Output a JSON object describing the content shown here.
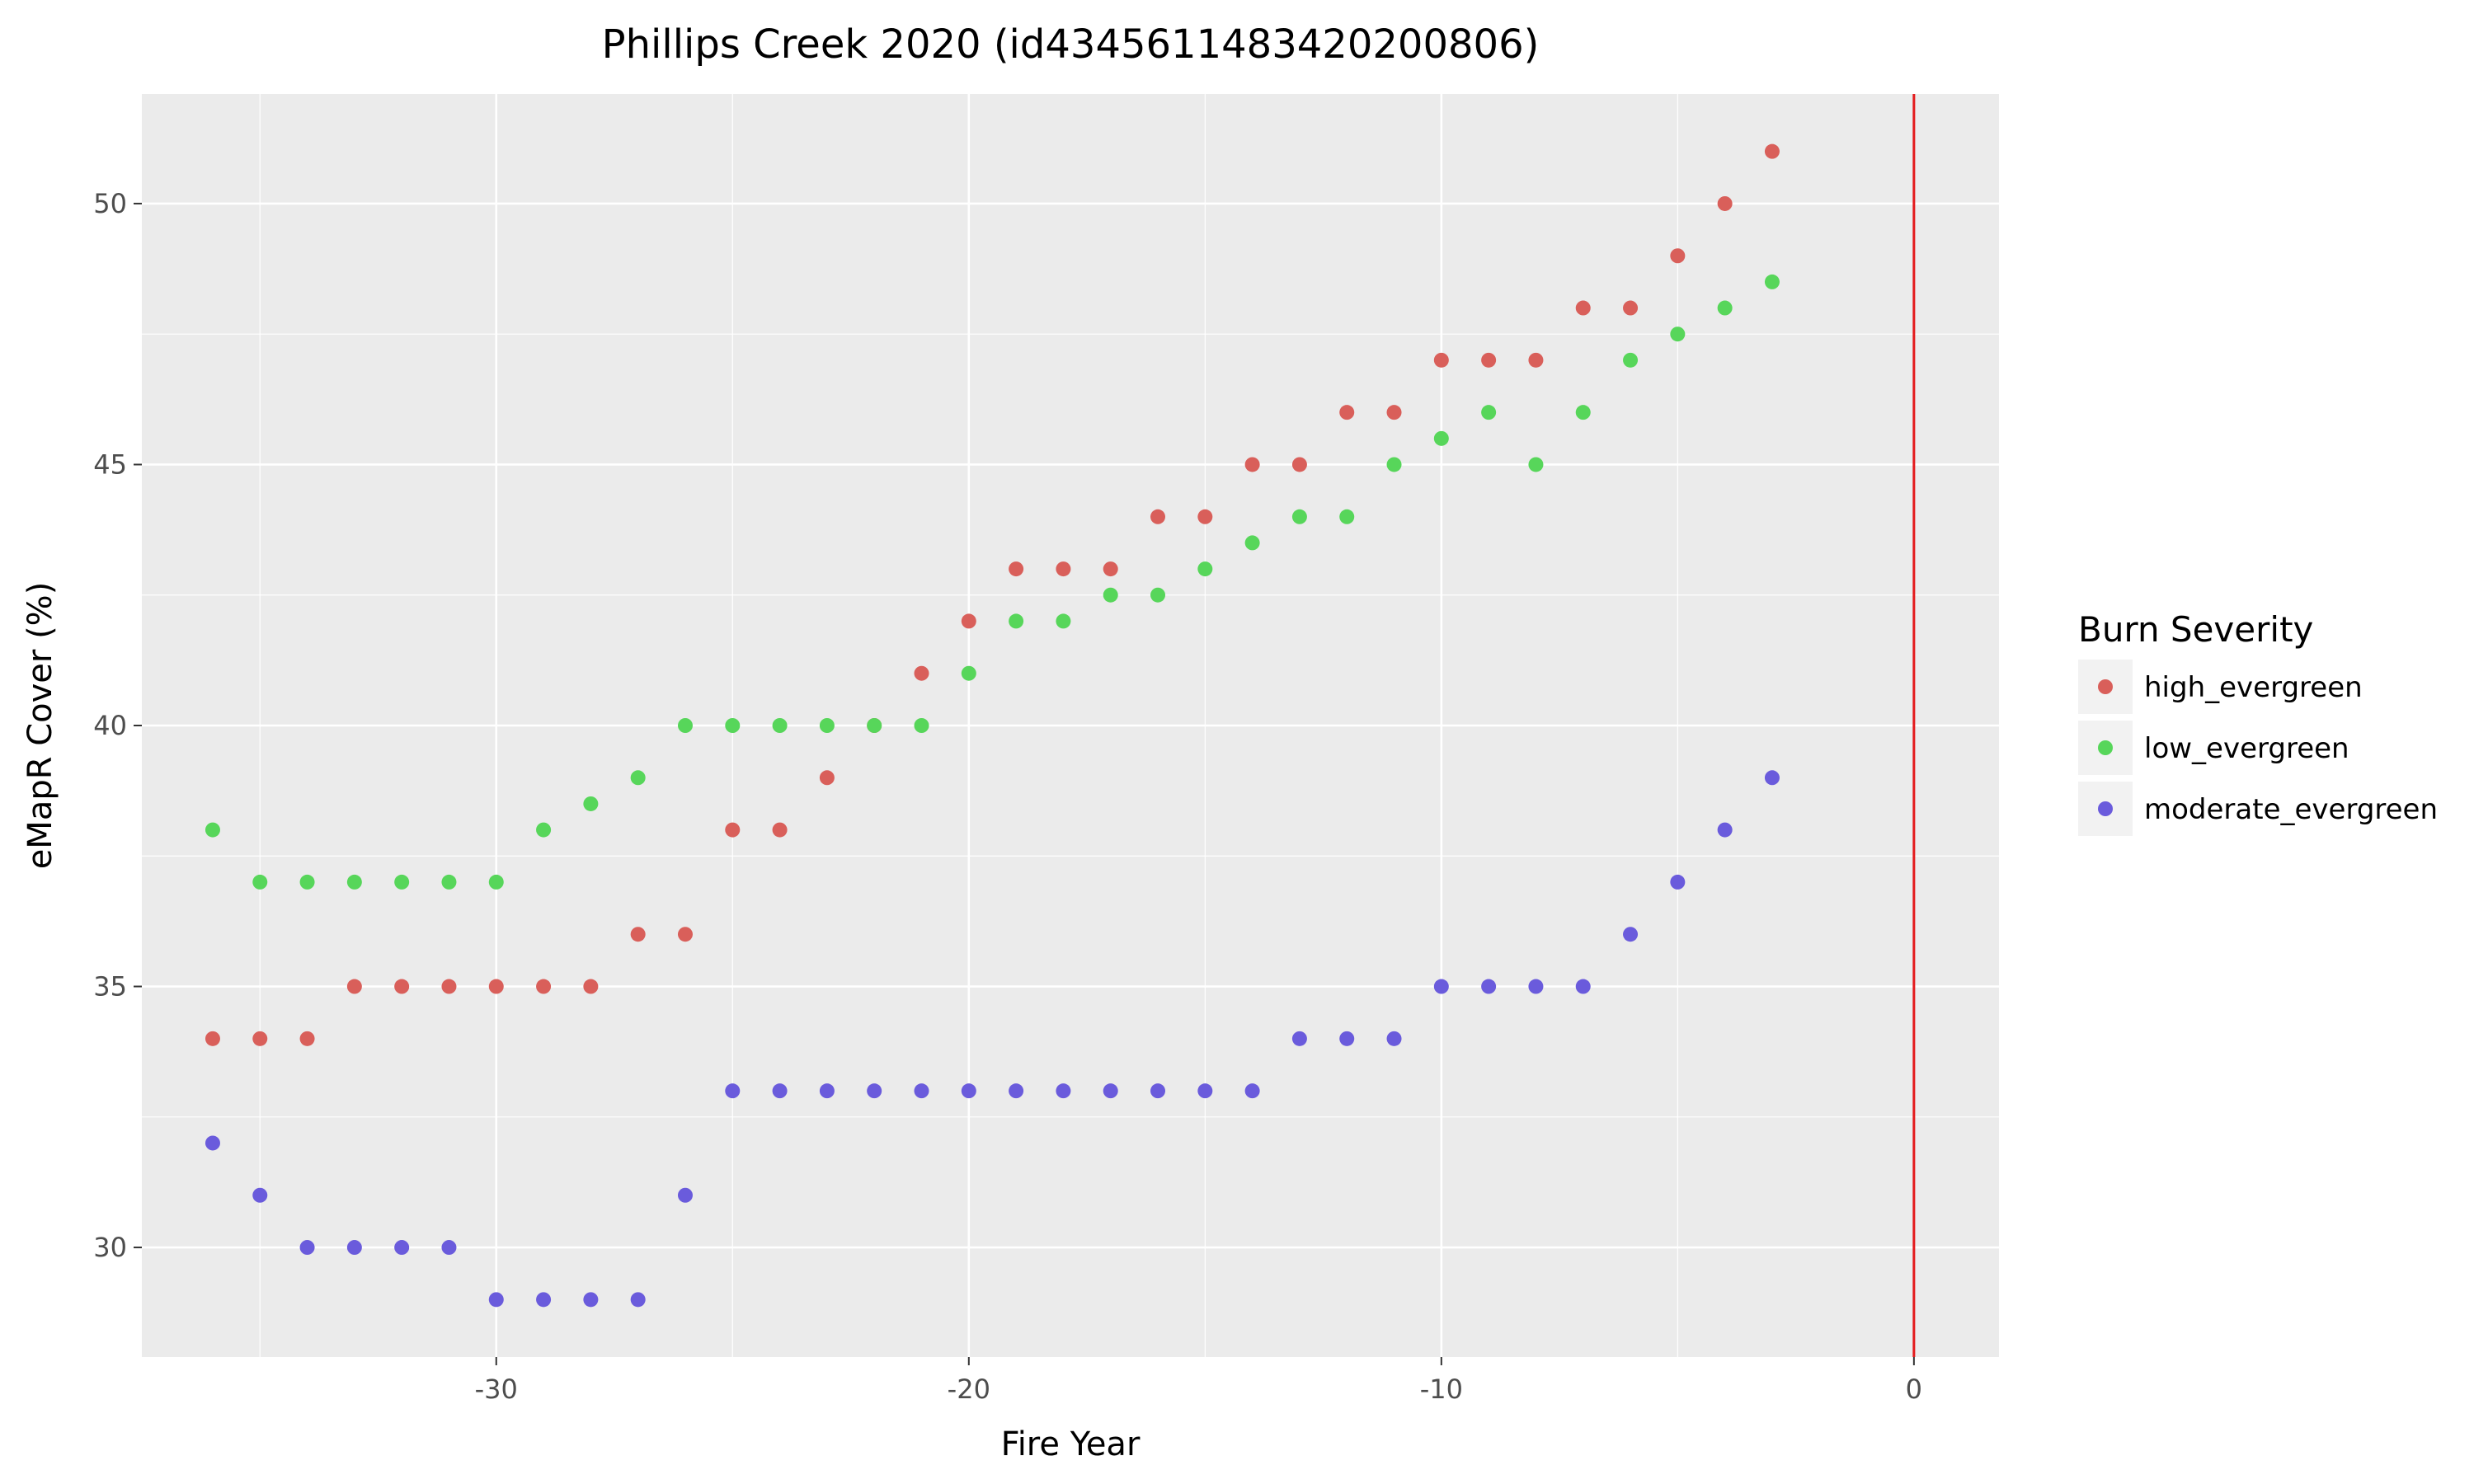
{
  "chart_data": {
    "type": "scatter",
    "title": "Phillips Creek 2020 (id434561148342020080​6)",
    "xlabel": "Fire Year",
    "ylabel": "eMapR Cover (%)",
    "xlim": [
      -37.5,
      1.8
    ],
    "ylim": [
      27.9,
      52.1
    ],
    "x_ticks": [
      -30,
      -20,
      -10,
      0
    ],
    "x_tick_labels": [
      "-30",
      "-20",
      "-10",
      "0"
    ],
    "y_ticks": [
      30,
      35,
      40,
      45,
      50
    ],
    "y_tick_labels": [
      "30",
      "35",
      "40",
      "45",
      "50"
    ],
    "grid": true,
    "vline": {
      "x": 0,
      "color": "#e41a1c"
    },
    "legend": {
      "title": "Burn Severity",
      "position": "right"
    },
    "series": [
      {
        "name": "high_evergreen",
        "color": "#d95f5a",
        "x": [
          -36,
          -35,
          -34,
          -33,
          -32,
          -31,
          -30,
          -29,
          -28,
          -27,
          -26,
          -25,
          -24,
          -23,
          -22,
          -21,
          -20,
          -19,
          -18,
          -17,
          -16,
          -15,
          -14,
          -13,
          -12,
          -11,
          -10,
          -9,
          -8,
          -7,
          -6,
          -5,
          -4,
          -3
        ],
        "y": [
          34,
          34,
          34,
          35,
          35,
          35,
          35,
          35,
          35,
          36,
          36,
          38,
          38,
          39,
          40,
          41,
          42,
          43,
          43,
          43,
          44,
          44,
          45,
          45,
          46,
          46,
          47,
          47,
          47,
          48,
          48,
          49,
          50,
          51
        ]
      },
      {
        "name": "low_evergreen",
        "color": "#57d65a",
        "x": [
          -36,
          -35,
          -34,
          -33,
          -32,
          -31,
          -30,
          -29,
          -28,
          -27,
          -26,
          -25,
          -24,
          -23,
          -22,
          -21,
          -20,
          -19,
          -18,
          -17,
          -16,
          -15,
          -14,
          -13,
          -12,
          -11,
          -10,
          -9,
          -8,
          -7,
          -6,
          -5,
          -4,
          -3
        ],
        "y": [
          38,
          37,
          37,
          37,
          37,
          37,
          37,
          38,
          38.5,
          39,
          40,
          40,
          40,
          40,
          40,
          40,
          41,
          42,
          42,
          42.5,
          42.5,
          43,
          43.5,
          44,
          44,
          45,
          45.5,
          46,
          45,
          46,
          47,
          47.5,
          48,
          48.5
        ]
      },
      {
        "name": "moderate_evergreen",
        "color": "#6a5bdc",
        "x": [
          -36,
          -35,
          -34,
          -33,
          -32,
          -31,
          -30,
          -29,
          -28,
          -27,
          -26,
          -25,
          -24,
          -23,
          -22,
          -21,
          -20,
          -19,
          -18,
          -17,
          -16,
          -15,
          -14,
          -13,
          -12,
          -11,
          -10,
          -9,
          -8,
          -7,
          -6,
          -5,
          -4,
          -3
        ],
        "y": [
          32,
          31,
          30,
          30,
          30,
          30,
          29,
          29,
          29,
          29,
          31,
          33,
          33,
          33,
          33,
          33,
          33,
          33,
          33,
          33,
          33,
          33,
          33,
          34,
          34,
          34,
          35,
          35,
          35,
          35,
          36,
          37,
          38,
          39
        ]
      }
    ]
  }
}
